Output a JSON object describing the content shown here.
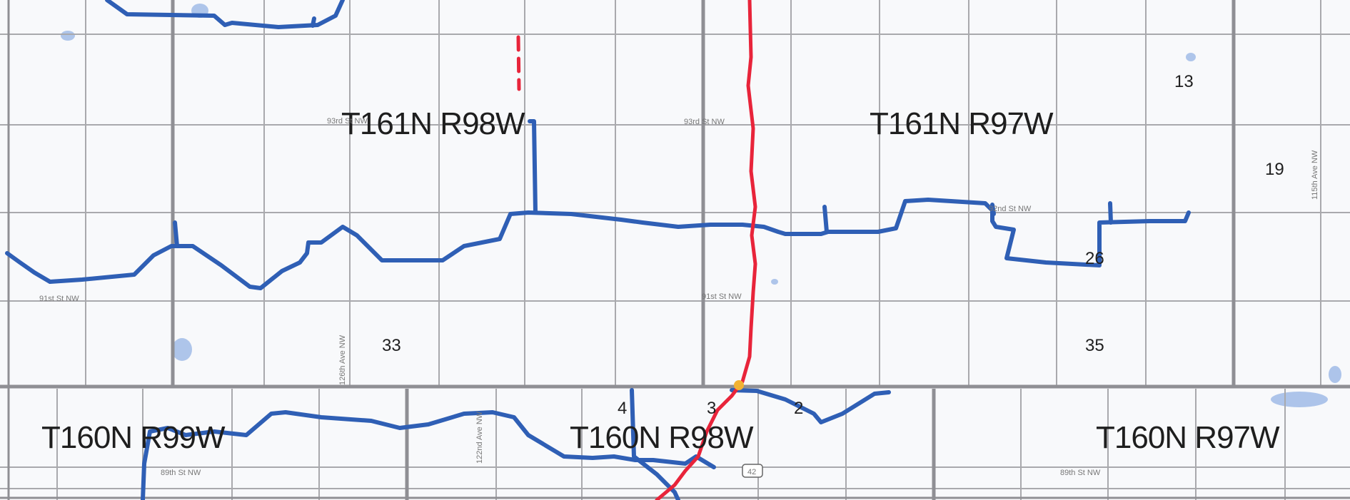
{
  "colors": {
    "background": "#f8f9fb",
    "grid": "#a9a9ad",
    "township_line": "#8f8f94",
    "pipeline_blue": "#2f5fb5",
    "pipeline_red": "#e8243a",
    "water": "#9bb8e6",
    "junction": "#f2b233"
  },
  "township_labels": [
    "T161N R98W",
    "T161N R97W",
    "T160N R99W",
    "T160N R98W",
    "T160N R97W"
  ],
  "section_labels": [
    "13",
    "19",
    "26",
    "33",
    "35",
    "4",
    "3",
    "2"
  ],
  "road_labels": [
    "93rd St NW",
    "93rd St NW",
    "92nd St NW",
    "91st St NW",
    "91st St NW",
    "126th Ave NW",
    "122nd Ave NW",
    "115th Ave NW",
    "89th St NW",
    "89th St NW"
  ],
  "route_marker": "42"
}
